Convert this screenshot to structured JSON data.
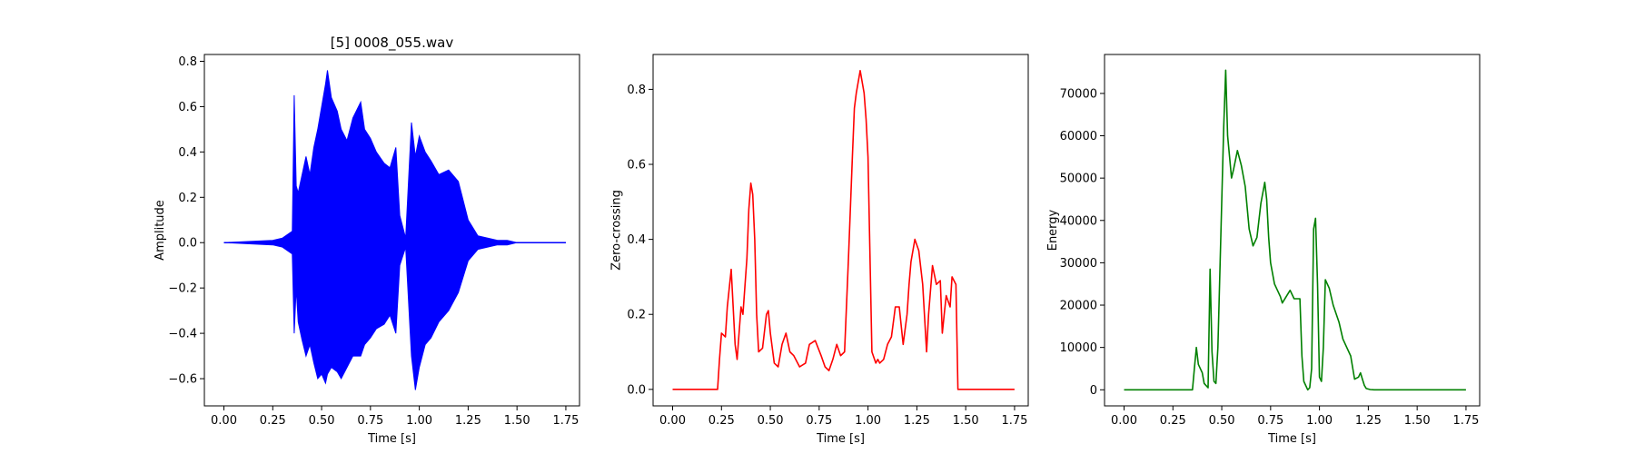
{
  "chart_data": [
    {
      "type": "line",
      "title": "[5] 0008_055.wav",
      "xlabel": "Time [s]",
      "ylabel": "Amplitude",
      "xlim": [
        -0.1,
        1.82
      ],
      "ylim": [
        -0.72,
        0.83
      ],
      "xticks": [
        0.0,
        0.25,
        0.5,
        0.75,
        1.0,
        1.25,
        1.5,
        1.75
      ],
      "xtick_labels": [
        "0.00",
        "0.25",
        "0.50",
        "0.75",
        "1.00",
        "1.25",
        "1.50",
        "1.75"
      ],
      "yticks": [
        -0.6,
        -0.4,
        -0.2,
        0.0,
        0.2,
        0.4,
        0.6,
        0.8
      ],
      "ytick_labels": [
        "−0.6",
        "−0.4",
        "−0.2",
        "0.0",
        "0.2",
        "0.4",
        "0.6",
        "0.8"
      ],
      "color": "#0000ff",
      "style": "waveform",
      "series": [
        {
          "x": [
            0.0,
            0.25,
            0.3,
            0.35,
            0.36,
            0.37,
            0.38,
            0.4,
            0.42,
            0.44,
            0.46,
            0.48,
            0.5,
            0.52,
            0.53,
            0.55,
            0.58,
            0.6,
            0.63,
            0.66,
            0.7,
            0.72,
            0.75,
            0.78,
            0.82,
            0.85,
            0.88,
            0.9,
            0.93,
            0.96,
            0.98,
            1.0,
            1.03,
            1.06,
            1.1,
            1.15,
            1.2,
            1.25,
            1.3,
            1.35,
            1.4,
            1.45,
            1.5,
            1.55,
            1.75
          ],
          "y_upper": [
            0.0,
            0.01,
            0.02,
            0.05,
            0.65,
            0.25,
            0.22,
            0.3,
            0.38,
            0.3,
            0.42,
            0.5,
            0.6,
            0.7,
            0.76,
            0.64,
            0.58,
            0.5,
            0.45,
            0.55,
            0.62,
            0.5,
            0.46,
            0.4,
            0.35,
            0.33,
            0.42,
            0.12,
            0.02,
            0.53,
            0.38,
            0.47,
            0.4,
            0.36,
            0.3,
            0.32,
            0.27,
            0.1,
            0.03,
            0.02,
            0.01,
            0.01,
            0.0,
            0.0,
            0.0
          ],
          "y_lower": [
            0.0,
            -0.01,
            -0.02,
            -0.05,
            -0.4,
            -0.2,
            -0.35,
            -0.43,
            -0.5,
            -0.45,
            -0.53,
            -0.6,
            -0.58,
            -0.62,
            -0.58,
            -0.55,
            -0.57,
            -0.6,
            -0.55,
            -0.5,
            -0.5,
            -0.45,
            -0.42,
            -0.38,
            -0.36,
            -0.32,
            -0.4,
            -0.1,
            -0.02,
            -0.5,
            -0.65,
            -0.55,
            -0.45,
            -0.42,
            -0.35,
            -0.3,
            -0.22,
            -0.08,
            -0.03,
            -0.02,
            -0.01,
            -0.01,
            0.0,
            0.0,
            0.0
          ]
        }
      ]
    },
    {
      "type": "line",
      "title": "",
      "xlabel": "Time [s]",
      "ylabel": "Zero-crossing",
      "xlim": [
        -0.1,
        1.82
      ],
      "ylim": [
        -0.044,
        0.893
      ],
      "xticks": [
        0.0,
        0.25,
        0.5,
        0.75,
        1.0,
        1.25,
        1.5,
        1.75
      ],
      "xtick_labels": [
        "0.00",
        "0.25",
        "0.50",
        "0.75",
        "1.00",
        "1.25",
        "1.50",
        "1.75"
      ],
      "yticks": [
        0.0,
        0.2,
        0.4,
        0.6,
        0.8
      ],
      "ytick_labels": [
        "0.0",
        "0.2",
        "0.4",
        "0.6",
        "0.8"
      ],
      "color": "#ff0000",
      "style": "line",
      "series": [
        {
          "x": [
            0.0,
            0.23,
            0.24,
            0.25,
            0.27,
            0.28,
            0.3,
            0.32,
            0.33,
            0.35,
            0.36,
            0.38,
            0.39,
            0.4,
            0.41,
            0.42,
            0.43,
            0.44,
            0.46,
            0.48,
            0.49,
            0.5,
            0.52,
            0.54,
            0.56,
            0.58,
            0.6,
            0.62,
            0.65,
            0.68,
            0.7,
            0.73,
            0.76,
            0.78,
            0.8,
            0.82,
            0.84,
            0.86,
            0.88,
            0.9,
            0.92,
            0.93,
            0.94,
            0.96,
            0.98,
            0.99,
            1.0,
            1.02,
            1.04,
            1.05,
            1.06,
            1.08,
            1.1,
            1.12,
            1.14,
            1.16,
            1.18,
            1.2,
            1.21,
            1.22,
            1.24,
            1.26,
            1.28,
            1.3,
            1.31,
            1.33,
            1.35,
            1.37,
            1.38,
            1.39,
            1.4,
            1.42,
            1.43,
            1.45,
            1.46,
            1.48,
            1.5,
            1.52,
            1.75
          ],
          "y": [
            0.0,
            0.0,
            0.08,
            0.15,
            0.14,
            0.22,
            0.32,
            0.12,
            0.08,
            0.22,
            0.2,
            0.35,
            0.48,
            0.55,
            0.52,
            0.4,
            0.2,
            0.1,
            0.11,
            0.2,
            0.21,
            0.15,
            0.07,
            0.06,
            0.12,
            0.15,
            0.1,
            0.09,
            0.06,
            0.07,
            0.12,
            0.13,
            0.09,
            0.06,
            0.05,
            0.08,
            0.12,
            0.09,
            0.1,
            0.35,
            0.62,
            0.75,
            0.79,
            0.85,
            0.79,
            0.72,
            0.62,
            0.1,
            0.07,
            0.08,
            0.07,
            0.08,
            0.12,
            0.14,
            0.22,
            0.22,
            0.12,
            0.2,
            0.28,
            0.34,
            0.4,
            0.37,
            0.28,
            0.1,
            0.2,
            0.33,
            0.28,
            0.29,
            0.15,
            0.2,
            0.25,
            0.22,
            0.3,
            0.28,
            0.0,
            0.0,
            0.0,
            0.0,
            0.0
          ]
        }
      ]
    },
    {
      "type": "line",
      "title": "",
      "xlabel": "Time [s]",
      "ylabel": "Energy",
      "xlim": [
        -0.1,
        1.82
      ],
      "ylim": [
        -3800,
        79200
      ],
      "xticks": [
        0.0,
        0.25,
        0.5,
        0.75,
        1.0,
        1.25,
        1.5,
        1.75
      ],
      "xtick_labels": [
        "0.00",
        "0.25",
        "0.50",
        "0.75",
        "1.00",
        "1.25",
        "1.50",
        "1.75"
      ],
      "yticks": [
        0,
        10000,
        20000,
        30000,
        40000,
        50000,
        60000,
        70000
      ],
      "ytick_labels": [
        "0",
        "10000",
        "20000",
        "30000",
        "40000",
        "50000",
        "60000",
        "70000"
      ],
      "color": "#008000",
      "style": "line",
      "series": [
        {
          "x": [
            0.0,
            0.35,
            0.36,
            0.37,
            0.38,
            0.4,
            0.41,
            0.43,
            0.44,
            0.45,
            0.46,
            0.47,
            0.48,
            0.5,
            0.51,
            0.52,
            0.53,
            0.55,
            0.56,
            0.58,
            0.6,
            0.62,
            0.64,
            0.66,
            0.68,
            0.7,
            0.72,
            0.73,
            0.74,
            0.75,
            0.77,
            0.8,
            0.81,
            0.83,
            0.85,
            0.87,
            0.9,
            0.91,
            0.92,
            0.94,
            0.95,
            0.96,
            0.97,
            0.98,
            0.99,
            1.0,
            1.01,
            1.02,
            1.03,
            1.05,
            1.07,
            1.1,
            1.12,
            1.14,
            1.16,
            1.18,
            1.2,
            1.21,
            1.22,
            1.23,
            1.24,
            1.26,
            1.28,
            1.3,
            1.35,
            1.5,
            1.75
          ],
          "y": [
            0,
            0,
            5000,
            10000,
            6000,
            4000,
            1500,
            500,
            28500,
            9000,
            2000,
            1500,
            10000,
            45000,
            62000,
            75500,
            60000,
            50000,
            52000,
            56500,
            53000,
            48000,
            38000,
            34000,
            36000,
            44000,
            49000,
            45000,
            36000,
            30000,
            25000,
            22000,
            20500,
            22000,
            23500,
            21500,
            21500,
            8000,
            2000,
            0,
            500,
            5000,
            38000,
            40500,
            25000,
            3000,
            2000,
            10000,
            26000,
            24000,
            20000,
            16000,
            12000,
            10000,
            8000,
            2500,
            3000,
            4000,
            2500,
            1000,
            300,
            50,
            0,
            0,
            0,
            0,
            0
          ]
        }
      ]
    }
  ]
}
